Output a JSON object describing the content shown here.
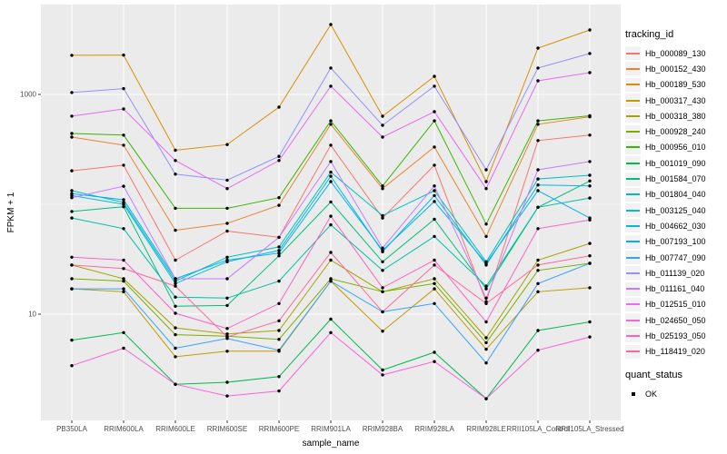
{
  "colors": {
    "panel_bg": "#EBEBEB",
    "grid": "#FFFFFF",
    "tick_mark": "#333333",
    "tick_label": "#4D4D4D",
    "axis_title": "#000000",
    "point": "#000000",
    "legend_key_bg": "#F2F2F2",
    "background": "#FFFFFF"
  },
  "legend": {
    "tracking_title": "tracking_id",
    "quant_title": "quant_status",
    "quant_items": [
      {
        "label": "OK",
        "marker": "black-point"
      }
    ]
  },
  "chart_data": {
    "type": "line",
    "title": "",
    "xlabel": "sample_name",
    "ylabel": "FPKM + 1",
    "y_scale": "log10",
    "y_ticks": [
      {
        "label": "1000",
        "value": 1000
      },
      {
        "label": "10",
        "value": 10
      }
    ],
    "y_minor_ticks": [
      100
    ],
    "ylim": [
      1.05,
      6500
    ],
    "grid": true,
    "legend_position": "right",
    "x_categories": [
      "PB350LA",
      "RRIM600LA",
      "RRIM600LE",
      "RRIM600SE",
      "RRIM600PE",
      "RRIM901LA",
      "RRIM928BA",
      "RRIM928LA",
      "RRIM928LE",
      "RRII105LA_Control",
      "RRII105LA_Stressed"
    ],
    "series": [
      {
        "name": "Hb_000089_130",
        "color": "#F8766D",
        "values": [
          202,
          227,
          31,
          57,
          50,
          345,
          75,
          227,
          13,
          380,
          426
        ]
      },
      {
        "name": "Hb_000152_430",
        "color": "#EA8331",
        "values": [
          409,
          345,
          58,
          67,
          98,
          535,
          139,
          332,
          51,
          535,
          626
        ]
      },
      {
        "name": "Hb_000189_530",
        "color": "#D89000",
        "values": [
          2270,
          2280,
          310,
          350,
          766,
          4330,
          633,
          1460,
          161,
          2640,
          3860
        ]
      },
      {
        "name": "Hb_000317_430",
        "color": "#C09B00",
        "values": [
          17,
          16,
          4.1,
          4.6,
          4.6,
          20,
          7,
          17,
          4.8,
          16,
          17.4
        ]
      },
      {
        "name": "Hb_000318_380",
        "color": "#A3A500",
        "values": [
          28,
          21,
          7.5,
          6.6,
          7.1,
          31,
          16,
          21,
          6.1,
          31,
          44
        ]
      },
      {
        "name": "Hb_000928_240",
        "color": "#7CAE00",
        "values": [
          21,
          20,
          6.5,
          6.3,
          5.9,
          21,
          16,
          19,
          5.5,
          25,
          29
        ]
      },
      {
        "name": "Hb_000956_010",
        "color": "#39B600",
        "values": [
          441,
          426,
          92,
          92,
          115,
          575,
          147,
          575,
          66,
          575,
          640
        ]
      },
      {
        "name": "Hb_001019_090",
        "color": "#00BB4E",
        "values": [
          5.8,
          6.8,
          2.3,
          2.4,
          2.7,
          9,
          3.1,
          4.5,
          1.7,
          7.1,
          8.5
        ]
      },
      {
        "name": "Hb_001584_070",
        "color": "#00BF7D",
        "values": [
          86,
          95,
          11.8,
          12,
          34,
          105,
          30,
          73,
          17,
          94,
          163
        ]
      },
      {
        "name": "Hb_001804_040",
        "color": "#00C1A3",
        "values": [
          75,
          60,
          14.3,
          14,
          20,
          65,
          25,
          51,
          18,
          94,
          114
        ]
      },
      {
        "name": "Hb_003125_040",
        "color": "#00BFC4",
        "values": [
          133,
          104,
          20,
          33,
          41,
          196,
          79,
          133,
          30,
          170,
          184
        ]
      },
      {
        "name": "Hb_004662_030",
        "color": "#00BAE0",
        "values": [
          120,
          100,
          19,
          30,
          38,
          180,
          37,
          120,
          28,
          150,
          147
        ]
      },
      {
        "name": "Hb_007193_100",
        "color": "#00B0F6",
        "values": [
          125,
          110,
          21,
          31,
          36,
          161,
          38,
          106,
          29,
          133,
          75
        ]
      },
      {
        "name": "Hb_007747_090",
        "color": "#35A2FF",
        "values": [
          17,
          17,
          4.9,
          6,
          4.7,
          20,
          10.5,
          12.5,
          3.6,
          19,
          29
        ]
      },
      {
        "name": "Hb_011139_020",
        "color": "#9590FF",
        "values": [
          1040,
          1130,
          188,
          166,
          273,
          1740,
          524,
          1190,
          206,
          1740,
          2360
        ]
      },
      {
        "name": "Hb_011161_040",
        "color": "#C77CFF",
        "values": [
          115,
          146,
          21,
          21,
          50,
          245,
          40,
          147,
          14,
          206,
          245
        ]
      },
      {
        "name": "Hb_012515_010",
        "color": "#E76BF3",
        "values": [
          634,
          738,
          250,
          139,
          250,
          1190,
          409,
          696,
          139,
          1330,
          1580
        ]
      },
      {
        "name": "Hb_024650_050",
        "color": "#FA62DB",
        "values": [
          3.4,
          4.9,
          2.3,
          1.8,
          2,
          6.8,
          2.8,
          3.7,
          1.7,
          4.7,
          6.2
        ]
      },
      {
        "name": "Hb_025193_050",
        "color": "#FF61C3",
        "values": [
          33,
          31,
          10.2,
          7.4,
          12.5,
          78,
          17.4,
          31,
          8.5,
          60,
          72
        ]
      },
      {
        "name": "Hb_118419_020",
        "color": "#FF689F",
        "values": [
          28,
          26,
          18,
          6.2,
          8.7,
          36.5,
          10.5,
          28,
          12.5,
          28,
          34
        ]
      }
    ]
  }
}
